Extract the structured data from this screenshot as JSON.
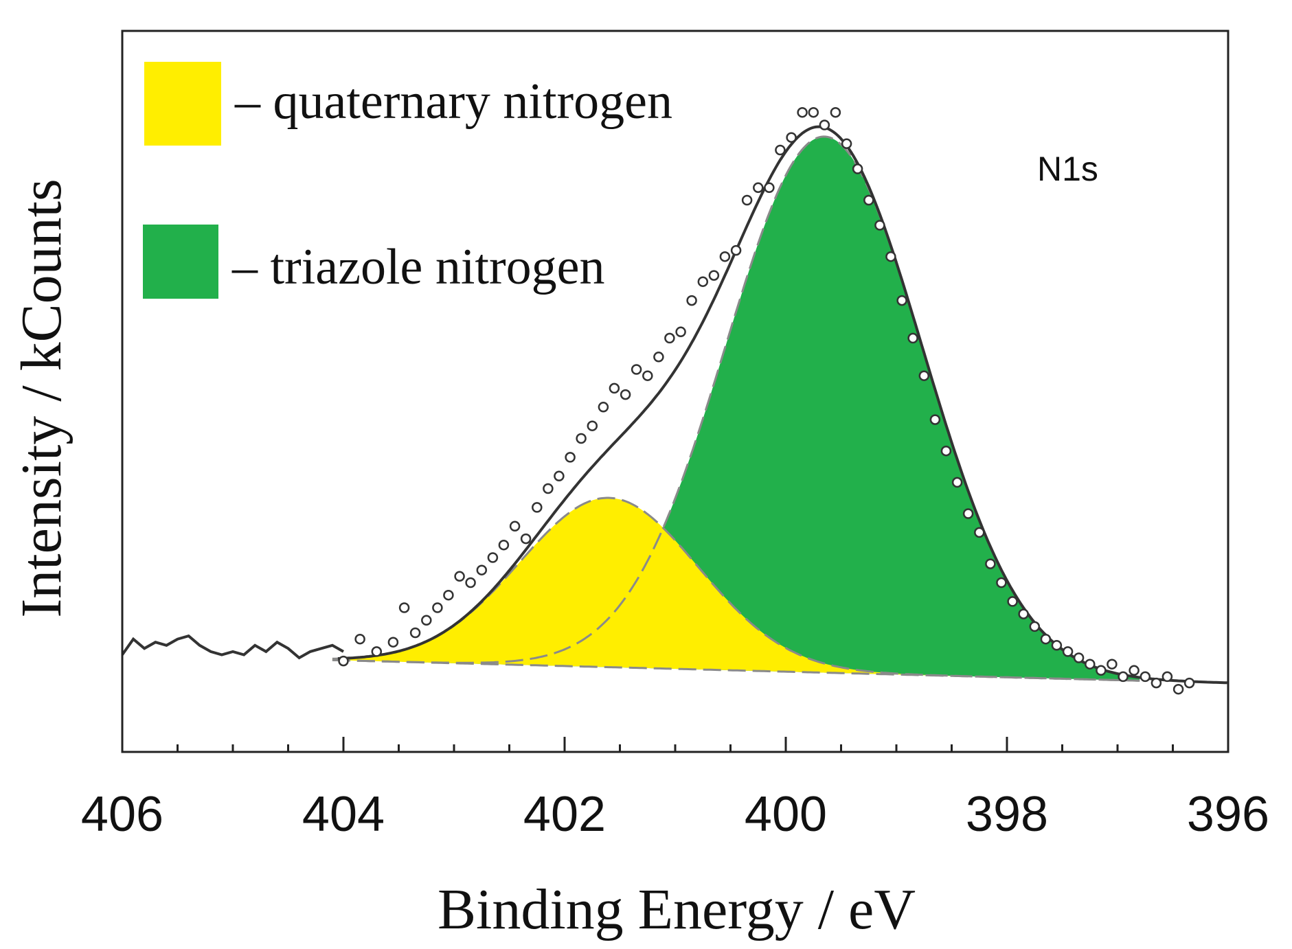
{
  "chart_data": {
    "type": "area",
    "title": "",
    "annotation": "N1s",
    "xlabel": "Binding Energy / eV",
    "ylabel": "Intensity / kCounts",
    "xlim": [
      406,
      396
    ],
    "ylim": [
      0,
      1.15
    ],
    "x_reversed": true,
    "x_ticks": [
      406,
      404,
      402,
      400,
      398,
      396
    ],
    "x_tick_labels": [
      "406",
      "404",
      "402",
      "400",
      "398",
      "396"
    ],
    "y_ticks_labeled": false,
    "grid": false,
    "legend_position": "top-left",
    "baseline": {
      "x": [
        406,
        396
      ],
      "y": [
        0.155,
        0.11
      ]
    },
    "series": [
      {
        "name": "quaternary nitrogen",
        "kind": "component",
        "color": "#ffee00",
        "shape": "gaussian",
        "center": 401.6,
        "fwhm": 1.9,
        "height": 0.27
      },
      {
        "name": "triazole nitrogen",
        "kind": "component",
        "color": "#22b04b",
        "shape": "gaussian",
        "center": 399.65,
        "fwhm": 2.1,
        "height": 0.855
      },
      {
        "name": "envelope",
        "kind": "fit",
        "color": "#333333"
      },
      {
        "name": "measured",
        "kind": "scatter",
        "color": "#333333",
        "x": [
          404.0,
          403.85,
          403.7,
          403.55,
          403.45,
          403.35,
          403.25,
          403.15,
          403.05,
          402.95,
          402.85,
          402.75,
          402.65,
          402.55,
          402.45,
          402.35,
          402.25,
          402.15,
          402.05,
          401.95,
          401.85,
          401.75,
          401.65,
          401.55,
          401.45,
          401.35,
          401.25,
          401.15,
          401.05,
          400.95,
          400.85,
          400.75,
          400.65,
          400.55,
          400.45,
          400.35,
          400.25,
          400.15,
          400.05,
          399.95,
          399.85,
          399.75,
          399.65,
          399.55,
          399.45,
          399.35,
          399.25,
          399.15,
          399.05,
          398.95,
          398.85,
          398.75,
          398.65,
          398.55,
          398.45,
          398.35,
          398.25,
          398.15,
          398.05,
          397.95,
          397.85,
          397.75,
          397.65,
          397.55,
          397.45,
          397.35,
          397.25,
          397.15,
          397.05,
          396.95,
          396.85,
          396.75,
          396.65,
          396.55,
          396.45,
          396.35
        ],
        "y": [
          0.145,
          0.18,
          0.16,
          0.175,
          0.23,
          0.19,
          0.21,
          0.23,
          0.25,
          0.28,
          0.27,
          0.29,
          0.31,
          0.33,
          0.36,
          0.34,
          0.39,
          0.42,
          0.44,
          0.47,
          0.5,
          0.52,
          0.55,
          0.58,
          0.57,
          0.61,
          0.6,
          0.63,
          0.66,
          0.67,
          0.72,
          0.75,
          0.76,
          0.79,
          0.8,
          0.88,
          0.9,
          0.9,
          0.96,
          0.98,
          1.02,
          1.02,
          1.0,
          1.02,
          0.97,
          0.93,
          0.88,
          0.84,
          0.79,
          0.72,
          0.66,
          0.6,
          0.53,
          0.48,
          0.43,
          0.38,
          0.35,
          0.3,
          0.27,
          0.24,
          0.22,
          0.2,
          0.18,
          0.17,
          0.16,
          0.15,
          0.14,
          0.13,
          0.14,
          0.12,
          0.13,
          0.12,
          0.11,
          0.12,
          0.1,
          0.11
        ]
      },
      {
        "name": "background trace",
        "kind": "line",
        "color": "#333333",
        "x": [
          406.0,
          405.9,
          405.8,
          405.7,
          405.6,
          405.5,
          405.4,
          405.3,
          405.2,
          405.1,
          405.0,
          404.9,
          404.8,
          404.7,
          404.6,
          404.5,
          404.4,
          404.3,
          404.2,
          404.1,
          404.0
        ],
        "y": [
          0.155,
          0.18,
          0.165,
          0.175,
          0.17,
          0.18,
          0.185,
          0.17,
          0.16,
          0.155,
          0.16,
          0.155,
          0.17,
          0.16,
          0.175,
          0.165,
          0.15,
          0.16,
          0.165,
          0.17,
          0.16
        ]
      }
    ]
  }
}
